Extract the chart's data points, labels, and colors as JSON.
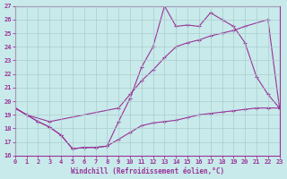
{
  "xlabel": "Windchill (Refroidissement éolien,°C)",
  "bg_color": "#c8eaea",
  "grid_color": "#aacccc",
  "line_color": "#993399",
  "xlim": [
    0,
    23
  ],
  "ylim": [
    16,
    27
  ],
  "yticks": [
    16,
    17,
    18,
    19,
    20,
    21,
    22,
    23,
    24,
    25,
    26,
    27
  ],
  "xticks": [
    0,
    1,
    2,
    3,
    4,
    5,
    6,
    7,
    8,
    9,
    10,
    11,
    12,
    13,
    14,
    15,
    16,
    17,
    18,
    19,
    20,
    21,
    22,
    23
  ],
  "series1_x": [
    0,
    1,
    2,
    3,
    4,
    5,
    6,
    7,
    8,
    9,
    10,
    11,
    12,
    13,
    14,
    15,
    16,
    17,
    18,
    19,
    20,
    21,
    22,
    23
  ],
  "series1_y": [
    19.5,
    19.0,
    18.5,
    18.1,
    17.5,
    16.5,
    16.6,
    16.6,
    16.7,
    17.2,
    17.7,
    18.2,
    18.4,
    18.5,
    18.6,
    18.8,
    19.0,
    19.1,
    19.2,
    19.3,
    19.4,
    19.5,
    19.5,
    19.5
  ],
  "series2_x": [
    0,
    1,
    3,
    9,
    10,
    11,
    12,
    13,
    14,
    15,
    16,
    17,
    18,
    19,
    20,
    22,
    23
  ],
  "series2_y": [
    19.5,
    19.0,
    18.5,
    19.5,
    20.5,
    21.5,
    22.3,
    23.2,
    24.0,
    24.3,
    24.5,
    24.8,
    25.0,
    25.2,
    25.5,
    26.0,
    19.5
  ],
  "series3_x": [
    0,
    1,
    2,
    3,
    4,
    5,
    6,
    7,
    8,
    9,
    10,
    11,
    12,
    13,
    14,
    15,
    16,
    17,
    18,
    19,
    20,
    21,
    22,
    23
  ],
  "series3_y": [
    19.5,
    19.0,
    18.5,
    18.1,
    17.5,
    16.5,
    16.6,
    16.6,
    16.7,
    18.5,
    20.2,
    22.5,
    24.0,
    27.0,
    25.5,
    25.6,
    25.5,
    26.5,
    26.0,
    25.5,
    24.3,
    21.8,
    20.5,
    19.5
  ]
}
